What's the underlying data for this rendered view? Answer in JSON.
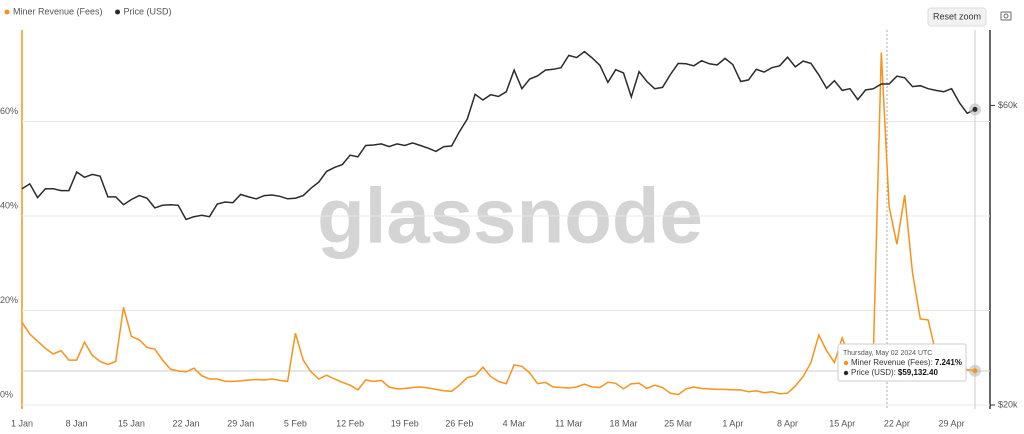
{
  "chart_data": {
    "type": "line",
    "watermark": "glassnode",
    "reset_zoom": "Reset zoom",
    "categories": [
      "1 Jan",
      null,
      null,
      null,
      null,
      null,
      null,
      "8 Jan",
      null,
      null,
      null,
      null,
      null,
      null,
      "15 Jan",
      null,
      null,
      null,
      null,
      null,
      null,
      "22 Jan",
      null,
      null,
      null,
      null,
      null,
      null,
      "29 Jan",
      null,
      null,
      null,
      null,
      null,
      null,
      "5 Feb",
      null,
      null,
      null,
      null,
      null,
      null,
      "12 Feb",
      null,
      null,
      null,
      null,
      null,
      null,
      "19 Feb",
      null,
      null,
      null,
      null,
      null,
      null,
      "26 Feb",
      null,
      null,
      null,
      null,
      null,
      null,
      "4 Mar",
      null,
      null,
      null,
      null,
      null,
      null,
      "11 Mar",
      null,
      null,
      null,
      null,
      null,
      null,
      "18 Mar",
      null,
      null,
      null,
      null,
      null,
      null,
      "25 Mar",
      null,
      null,
      null,
      null,
      null,
      null,
      "1 Apr",
      null,
      null,
      null,
      null,
      null,
      null,
      "8 Apr",
      null,
      null,
      null,
      null,
      null,
      null,
      "15 Apr",
      null,
      null,
      null,
      null,
      null,
      null,
      "22 Apr",
      null,
      null,
      null,
      null,
      null,
      null,
      "29 Apr",
      null,
      null,
      null
    ],
    "series": [
      {
        "name": "Miner Revenue (Fees)",
        "color": "#f7931a",
        "axis": "y",
        "values": [
          17.5,
          15,
          13.5,
          12,
          10.8,
          11.5,
          9.5,
          9.5,
          13.3,
          10.5,
          9.2,
          8.6,
          9.2,
          20.7,
          14.5,
          13.8,
          12.2,
          11.8,
          9.5,
          7.6,
          7.2,
          7.0,
          7.8,
          6.2,
          5.5,
          5.5,
          5.0,
          5.0,
          5.1,
          5.3,
          5.4,
          5.3,
          5.5,
          5.2,
          5.0,
          15.2,
          9.5,
          7.0,
          5.5,
          6.3,
          5.5,
          4.8,
          4.2,
          3.2,
          5.3,
          5.0,
          5.2,
          3.8,
          3.4,
          3.5,
          3.7,
          3.8,
          3.6,
          3.3,
          3.0,
          2.9,
          4.2,
          5.8,
          6.2,
          8.0,
          6.0,
          5.0,
          4.5,
          8.5,
          8.2,
          6.8,
          4.5,
          4.8,
          3.8,
          3.7,
          3.6,
          3.8,
          4.4,
          3.8,
          3.7,
          4.8,
          4.6,
          3.4,
          4.5,
          4.6,
          3.5,
          4.2,
          3.7,
          2.5,
          2.2,
          3.4,
          3.8,
          3.5,
          3.4,
          3.3,
          3.3,
          3.2,
          3.2,
          2.8,
          3.0,
          2.6,
          2.8,
          2.4,
          2.5,
          4.0,
          6.0,
          9.0,
          14.8,
          11.5,
          9.0,
          14.2,
          10.0,
          8.0,
          9.0,
          12.0,
          74.6,
          42.0,
          34.0,
          44.4,
          28.0,
          18.2,
          18.0,
          11.0,
          9.0,
          8.5,
          8.0,
          7.5,
          7.241
        ]
      },
      {
        "name": "Price (USD)",
        "color": "#2b2b2b",
        "axis": "y2",
        "values": [
          44200,
          45000,
          42800,
          44200,
          44200,
          43900,
          43900,
          47000,
          46100,
          46600,
          46300,
          42900,
          42900,
          41700,
          42500,
          43100,
          42700,
          41200,
          41600,
          41700,
          41600,
          39500,
          39900,
          40100,
          39900,
          41800,
          42100,
          42000,
          43300,
          42900,
          42600,
          43100,
          43200,
          43000,
          42600,
          42700,
          43100,
          44300,
          45300,
          47100,
          47800,
          48300,
          50000,
          49700,
          51800,
          51900,
          52100,
          51600,
          52100,
          51800,
          52300,
          51800,
          51300,
          50700,
          51600,
          51700,
          54500,
          57100,
          62500,
          61200,
          62400,
          62000,
          63100,
          68300,
          63800,
          66100,
          66900,
          68300,
          68500,
          68900,
          72100,
          71500,
          73100,
          71400,
          69500,
          65300,
          68400,
          67600,
          61900,
          67900,
          65500,
          63800,
          64100,
          67200,
          70000,
          69900,
          69400,
          70700,
          69900,
          69600,
          71300,
          69700,
          65500,
          65900,
          68500,
          67800,
          68900,
          69400,
          71600,
          69100,
          70600,
          70000,
          67100,
          63900,
          65700,
          63400,
          63800,
          61300,
          63500,
          63800,
          64900,
          64900,
          66800,
          66400,
          64300,
          64500,
          63800,
          63400,
          63100,
          63800,
          60600,
          58300,
          59132.4
        ]
      }
    ],
    "ylim": [
      0,
      80
    ],
    "yticks": [
      {
        "value": 0,
        "label": "0%"
      },
      {
        "value": 20,
        "label": "20%"
      },
      {
        "value": 40,
        "label": "40%"
      },
      {
        "value": 60,
        "label": "60%"
      }
    ],
    "y2lim": [
      20000,
      80000
    ],
    "y2scale": "log",
    "y2ticks": [
      {
        "value": 20000,
        "label": "$20k"
      },
      {
        "value": 60000,
        "label": "$60k"
      }
    ],
    "grid": true,
    "legend": "top-left",
    "tooltip": {
      "title": "Thursday, May 02 2024 UTC",
      "items": [
        {
          "label": "Miner Revenue (Fees):",
          "value": "7.241%"
        },
        {
          "label": "Price (USD):",
          "value": "$59,132.40"
        }
      ]
    }
  }
}
